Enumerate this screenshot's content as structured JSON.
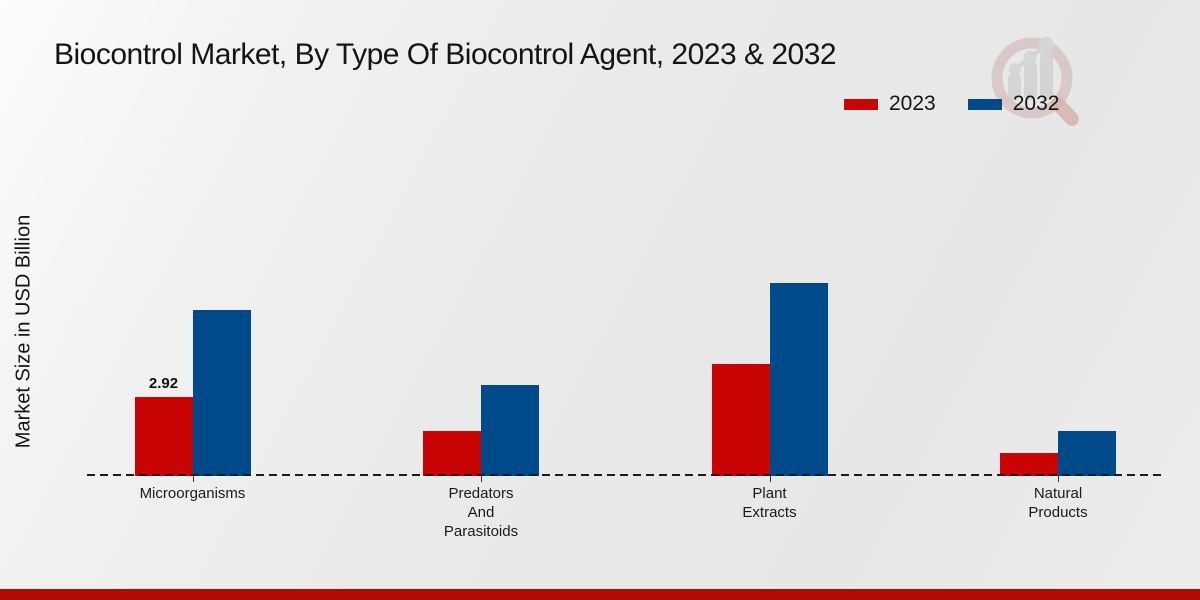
{
  "title": "Biocontrol Market, By Type Of Biocontrol Agent, 2023 & 2032",
  "chart_data": {
    "type": "bar",
    "title": "Biocontrol Market, By Type Of Biocontrol Agent, 2023 & 2032",
    "xlabel": "",
    "ylabel": "Market Size in USD Billion",
    "categories": [
      "Microorganisms",
      "Predators And Parasitoids",
      "Plant Extracts",
      "Natural Products"
    ],
    "series": [
      {
        "name": "2023",
        "color": "#c80404",
        "values": [
          2.92,
          1.66,
          4.14,
          0.85
        ]
      },
      {
        "name": "2032",
        "color": "#004a8a",
        "values": [
          6.14,
          3.36,
          7.13,
          1.66
        ]
      }
    ],
    "data_labels": [
      {
        "series_index": 0,
        "category_index": 0,
        "text": "2.92"
      }
    ],
    "ylim": [
      0,
      7.5
    ],
    "grid": false,
    "legend_position": "top-right",
    "baseline_style": "dashed",
    "bar_orientation": "vertical"
  },
  "colors": {
    "bar_2023": "#c80404",
    "bar_2032": "#004a8a",
    "footer_strip": "#b00a04",
    "background": "#ececec",
    "baseline": "#1c1c1c"
  },
  "watermark": {
    "icon": "magnifier-growth-chart-logo"
  }
}
